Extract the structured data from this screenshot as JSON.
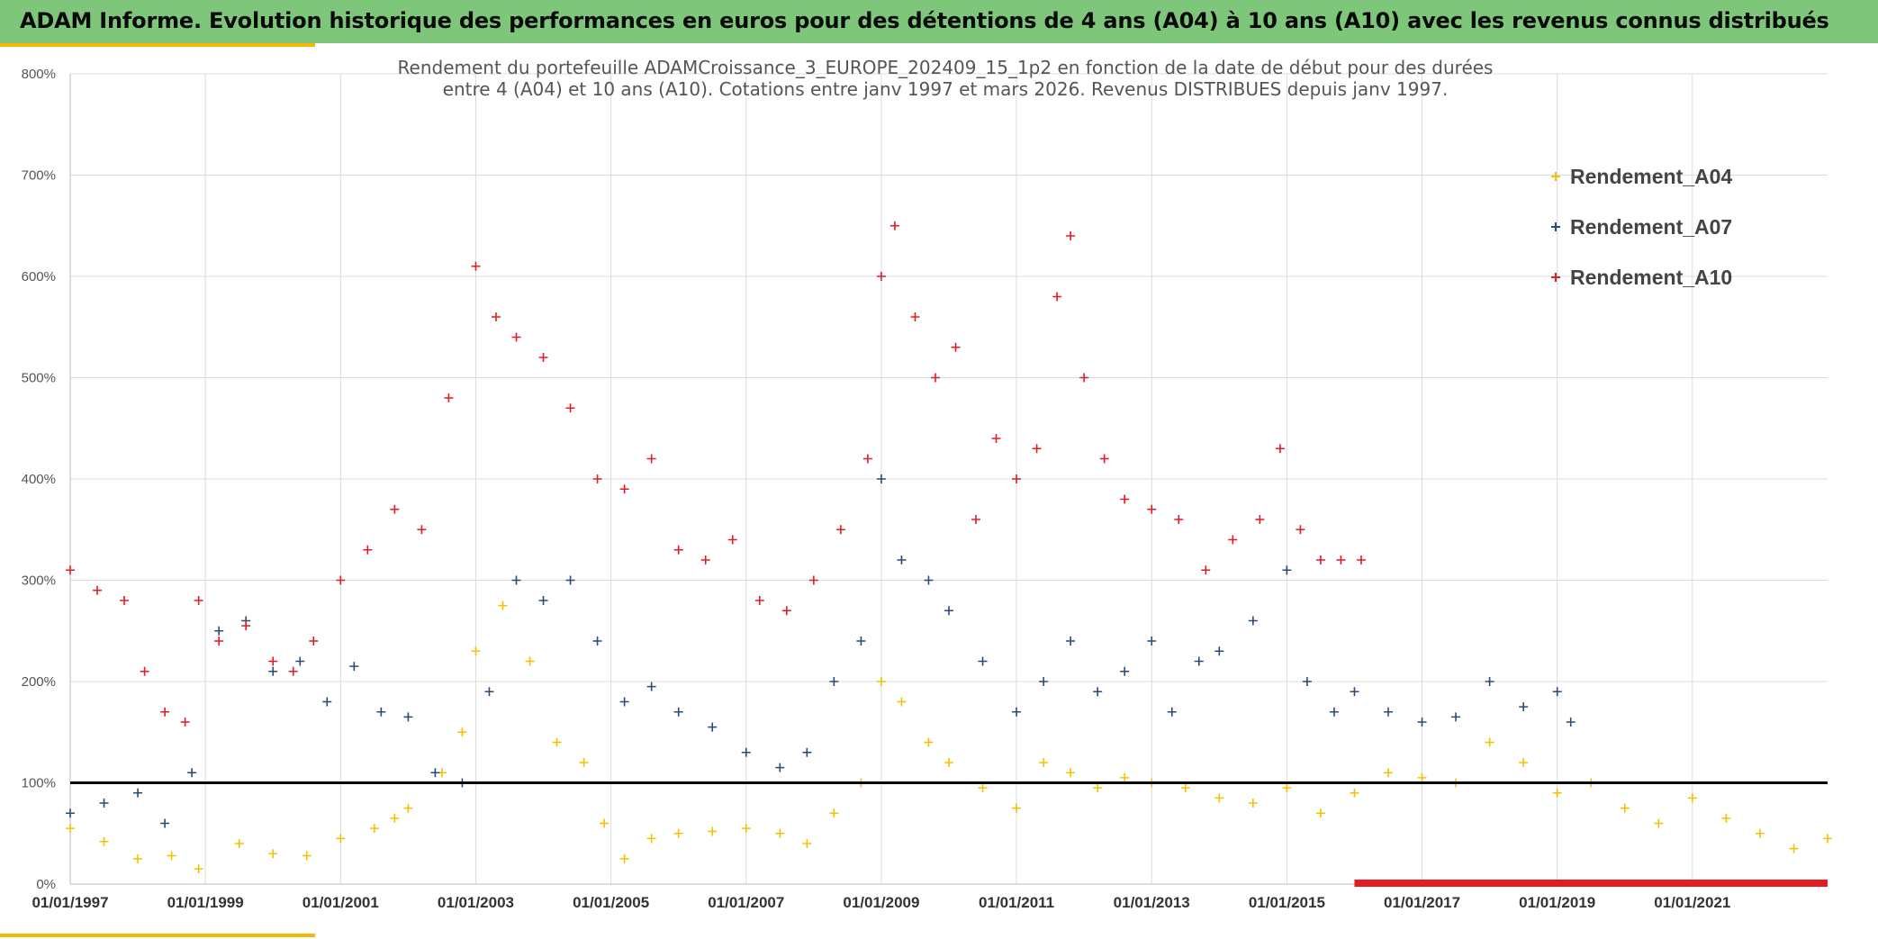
{
  "header": {
    "title": "ADAM Informe. Evolution historique des performances en euros pour des détentions de 4 ans (A04) à 10 ans (A10) avec les revenus connus distribués"
  },
  "colors": {
    "banner": "#7dc67a",
    "accent": "#f5b800",
    "a04": "#f5c000",
    "a07": "#2c4a78",
    "a10": "#e31b23"
  },
  "chart_data": {
    "type": "scatter",
    "title_line1": "Rendement du portefeuille ADAMCroissance_3_EUROPE_202409_15_1p2  en fonction de la date de début pour des durées",
    "title_line2": "entre 4 (A04) et 10 ans (A10). Cotations entre janv 1997 et mars 2026. Revenus DISTRIBUES depuis janv 1997.",
    "x_range": [
      1997.0,
      2023.0
    ],
    "ylim": [
      0,
      800
    ],
    "y_ticks": [
      0,
      100,
      200,
      300,
      400,
      500,
      600,
      700,
      800
    ],
    "y_tick_labels": [
      "0%",
      "100%",
      "200%",
      "300%",
      "400%",
      "500%",
      "600%",
      "700%",
      "800%"
    ],
    "x_ticks": [
      1997,
      1999,
      2001,
      2003,
      2005,
      2007,
      2009,
      2011,
      2013,
      2015,
      2017,
      2019,
      2021
    ],
    "x_tick_labels": [
      "01/01/1997",
      "01/01/1999",
      "01/01/2001",
      "01/01/2003",
      "01/01/2005",
      "01/01/2007",
      "01/01/2009",
      "01/01/2011",
      "01/01/2013",
      "01/01/2015",
      "01/01/2017",
      "01/01/2019",
      "01/01/2021"
    ],
    "reference_line": 100,
    "legend_position": "top-right",
    "series": [
      {
        "name": "Rendement_A04",
        "color": "#f5c000",
        "x": [
          1997.0,
          1997.5,
          1998.0,
          1998.5,
          1998.9,
          1999.5,
          2000.0,
          2000.5,
          2001.0,
          2001.5,
          2001.8,
          2002.0,
          2002.5,
          2002.8,
          2003.0,
          2003.4,
          2003.8,
          2004.2,
          2004.6,
          2004.9,
          2005.2,
          2005.6,
          2006.0,
          2006.5,
          2007.0,
          2007.5,
          2007.9,
          2008.3,
          2008.7,
          2009.0,
          2009.3,
          2009.7,
          2010.0,
          2010.5,
          2011.0,
          2011.4,
          2011.8,
          2012.2,
          2012.6,
          2013.0,
          2013.5,
          2014.0,
          2014.5,
          2015.0,
          2015.5,
          2016.0,
          2016.5,
          2017.0,
          2017.5,
          2018.0,
          2018.5,
          2019.0,
          2019.5,
          2020.0,
          2020.5,
          2021.0,
          2021.5,
          2022.0,
          2022.5,
          2023.0
        ],
        "y": [
          55,
          42,
          25,
          28,
          15,
          40,
          30,
          28,
          45,
          55,
          65,
          75,
          110,
          150,
          230,
          275,
          220,
          140,
          120,
          60,
          25,
          45,
          50,
          52,
          55,
          50,
          40,
          70,
          100,
          200,
          180,
          140,
          120,
          95,
          75,
          120,
          110,
          95,
          105,
          100,
          95,
          85,
          80,
          95,
          70,
          90,
          110,
          105,
          100,
          140,
          120,
          90,
          100,
          75,
          60,
          85,
          65,
          50,
          35,
          45
        ]
      },
      {
        "name": "Rendement_A07",
        "color": "#2c4a78",
        "x": [
          1997.0,
          1997.5,
          1998.0,
          1998.4,
          1998.8,
          1999.2,
          1999.6,
          2000.0,
          2000.4,
          2000.8,
          2001.2,
          2001.6,
          2002.0,
          2002.4,
          2002.8,
          2003.2,
          2003.6,
          2004.0,
          2004.4,
          2004.8,
          2005.2,
          2005.6,
          2006.0,
          2006.5,
          2007.0,
          2007.5,
          2007.9,
          2008.3,
          2008.7,
          2009.0,
          2009.3,
          2009.7,
          2010.0,
          2010.5,
          2011.0,
          2011.4,
          2011.8,
          2012.2,
          2012.6,
          2013.0,
          2013.3,
          2013.7,
          2014.0,
          2014.5,
          2015.0,
          2015.3,
          2015.7,
          2016.0,
          2016.5,
          2017.0,
          2017.5,
          2018.0,
          2018.5,
          2019.0,
          2019.2
        ],
        "y": [
          70,
          80,
          90,
          60,
          110,
          250,
          260,
          210,
          220,
          180,
          215,
          170,
          165,
          110,
          100,
          190,
          300,
          280,
          300,
          240,
          180,
          195,
          170,
          155,
          130,
          115,
          130,
          200,
          240,
          400,
          320,
          300,
          270,
          220,
          170,
          200,
          240,
          190,
          210,
          240,
          170,
          220,
          230,
          260,
          310,
          200,
          170,
          190,
          170,
          160,
          165,
          200,
          175,
          190,
          160
        ]
      },
      {
        "name": "Rendement_A10",
        "color": "#e31b23",
        "x": [
          1997.0,
          1997.4,
          1997.8,
          1998.1,
          1998.4,
          1998.7,
          1998.9,
          1999.2,
          1999.6,
          2000.0,
          2000.3,
          2000.6,
          2001.0,
          2001.4,
          2001.8,
          2002.2,
          2002.6,
          2003.0,
          2003.3,
          2003.6,
          2004.0,
          2004.4,
          2004.8,
          2005.2,
          2005.6,
          2006.0,
          2006.4,
          2006.8,
          2007.2,
          2007.6,
          2008.0,
          2008.4,
          2008.8,
          2009.0,
          2009.2,
          2009.5,
          2009.8,
          2010.1,
          2010.4,
          2010.7,
          2011.0,
          2011.3,
          2011.6,
          2011.8,
          2012.0,
          2012.3,
          2012.6,
          2013.0,
          2013.4,
          2013.8,
          2014.2,
          2014.6,
          2014.9,
          2015.2,
          2015.5,
          2015.8,
          2016.1
        ],
        "y": [
          310,
          290,
          280,
          210,
          170,
          160,
          280,
          240,
          255,
          220,
          210,
          240,
          300,
          330,
          370,
          350,
          480,
          610,
          560,
          540,
          520,
          470,
          400,
          390,
          420,
          330,
          320,
          340,
          280,
          270,
          300,
          350,
          420,
          600,
          650,
          560,
          500,
          530,
          360,
          440,
          400,
          430,
          580,
          640,
          500,
          420,
          380,
          370,
          360,
          310,
          340,
          360,
          430,
          350,
          320,
          320,
          320
        ]
      }
    ]
  }
}
